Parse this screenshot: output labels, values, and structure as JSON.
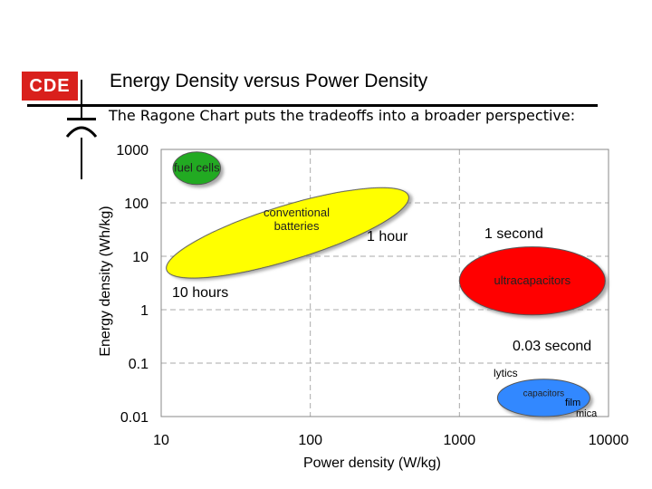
{
  "header": {
    "logo_text": "CDE",
    "title": "Energy Density versus Power Density",
    "subtitle": "The Ragone Chart puts the tradeoffs into a broader perspective:"
  },
  "chart_data": {
    "type": "scatter",
    "title": "Energy Density versus Power Density",
    "xlabel": "Power density (W/kg)",
    "ylabel": "Energy density (Wh/kg)",
    "xscale": "log",
    "yscale": "log",
    "xlim": [
      10,
      10000
    ],
    "ylim": [
      0.01,
      1000
    ],
    "x_ticks": [
      "10",
      "100",
      "1000",
      "10000"
    ],
    "y_ticks": [
      "1000",
      "100",
      "10",
      "1",
      "0.1",
      "0.01"
    ],
    "grid": true,
    "regions": [
      {
        "name": "fuel cells",
        "label": "fuel cells",
        "color": "#22aa22",
        "x_range": [
          12,
          25
        ],
        "y_range": [
          220,
          900
        ]
      },
      {
        "name": "conventional batteries",
        "label": "conventional\nbatteries",
        "color": "#ffff00",
        "x_range": [
          11,
          450
        ],
        "y_range": [
          5,
          150
        ]
      },
      {
        "name": "ultracapacitors",
        "label": "ultracapacitors",
        "color": "#ff0000",
        "x_range": [
          1000,
          9500
        ],
        "y_range": [
          0.8,
          15
        ]
      },
      {
        "name": "capacitors",
        "label": "capacitors",
        "color": "#3388ff",
        "x_range": [
          1800,
          7500
        ],
        "y_range": [
          0.01,
          0.05
        ]
      }
    ],
    "annotations": [
      {
        "text": "1 hour"
      },
      {
        "text": "1 second"
      },
      {
        "text": "10 hours"
      },
      {
        "text": "0.03 second"
      },
      {
        "text": "lytics"
      },
      {
        "text": "film"
      },
      {
        "text": "mica"
      }
    ]
  }
}
